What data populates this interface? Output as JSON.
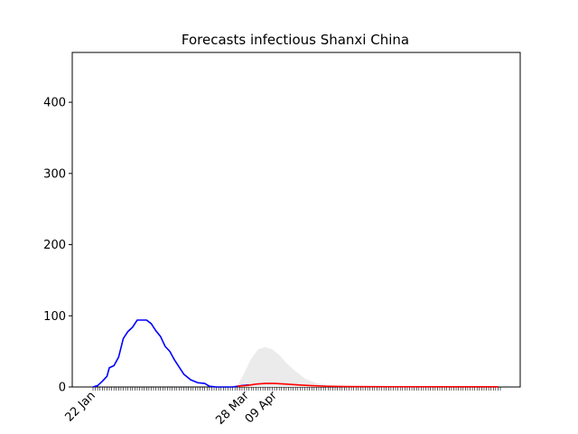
{
  "chart_data": {
    "type": "line",
    "title": "Forecasts infectious Shanxi China",
    "xlabel": "",
    "ylabel": "",
    "x_start": "2020-01-22",
    "x_end": "2020-07-15",
    "ylim": [
      0,
      470
    ],
    "yticks": [
      0,
      100,
      200,
      300,
      400
    ],
    "xtick_labels": [
      {
        "date": "2020-01-22",
        "label": "22 Jan"
      },
      {
        "date": "2020-03-28",
        "label": "28 Mar"
      },
      {
        "date": "2020-04-09",
        "label": "09 Apr"
      }
    ],
    "grid": false,
    "series": [
      {
        "role": "observed",
        "color": "#0000ff",
        "points": [
          [
            "2020-01-22",
            0
          ],
          [
            "2020-01-24",
            2
          ],
          [
            "2020-01-26",
            8
          ],
          [
            "2020-01-28",
            15
          ],
          [
            "2020-01-29",
            27
          ],
          [
            "2020-01-31",
            30
          ],
          [
            "2020-02-02",
            42
          ],
          [
            "2020-02-04",
            68
          ],
          [
            "2020-02-06",
            78
          ],
          [
            "2020-02-08",
            84
          ],
          [
            "2020-02-10",
            94
          ],
          [
            "2020-02-14",
            94
          ],
          [
            "2020-02-16",
            89
          ],
          [
            "2020-02-18",
            79
          ],
          [
            "2020-02-20",
            71
          ],
          [
            "2020-02-22",
            57
          ],
          [
            "2020-02-24",
            50
          ],
          [
            "2020-02-26",
            38
          ],
          [
            "2020-02-28",
            28
          ],
          [
            "2020-03-01",
            18
          ],
          [
            "2020-03-04",
            10
          ],
          [
            "2020-03-07",
            6
          ],
          [
            "2020-03-10",
            5
          ],
          [
            "2020-03-12",
            1
          ],
          [
            "2020-03-15",
            0
          ],
          [
            "2020-03-22",
            0
          ],
          [
            "2020-03-26",
            2
          ],
          [
            "2020-03-29",
            3
          ]
        ]
      },
      {
        "role": "forecast",
        "color": "#ff0000",
        "points": [
          [
            "2020-03-24",
            1
          ],
          [
            "2020-03-28",
            2
          ],
          [
            "2020-04-01",
            4
          ],
          [
            "2020-04-05",
            5
          ],
          [
            "2020-04-09",
            5
          ],
          [
            "2020-04-14",
            4
          ],
          [
            "2020-04-19",
            3
          ],
          [
            "2020-04-24",
            2
          ],
          [
            "2020-05-01",
            1
          ],
          [
            "2020-05-10",
            0.6
          ],
          [
            "2020-06-01",
            0.3
          ],
          [
            "2020-07-14",
            0.2
          ]
        ]
      }
    ],
    "band": {
      "role": "forecast-interval",
      "color": "#ebebeb",
      "points": [
        [
          "2020-03-24",
          0,
          1
        ],
        [
          "2020-03-27",
          0,
          20
        ],
        [
          "2020-03-30",
          0,
          40
        ],
        [
          "2020-04-02",
          0,
          53
        ],
        [
          "2020-04-05",
          0,
          56
        ],
        [
          "2020-04-08",
          0,
          53
        ],
        [
          "2020-04-11",
          0,
          45
        ],
        [
          "2020-04-14",
          0,
          34
        ],
        [
          "2020-04-18",
          0,
          22
        ],
        [
          "2020-04-22",
          0,
          12
        ],
        [
          "2020-04-27",
          0,
          5
        ],
        [
          "2020-05-04",
          0,
          2
        ],
        [
          "2020-05-15",
          0,
          1
        ],
        [
          "2020-06-01",
          0,
          0.5
        ],
        [
          "2020-07-14",
          0,
          0.2
        ]
      ]
    }
  }
}
